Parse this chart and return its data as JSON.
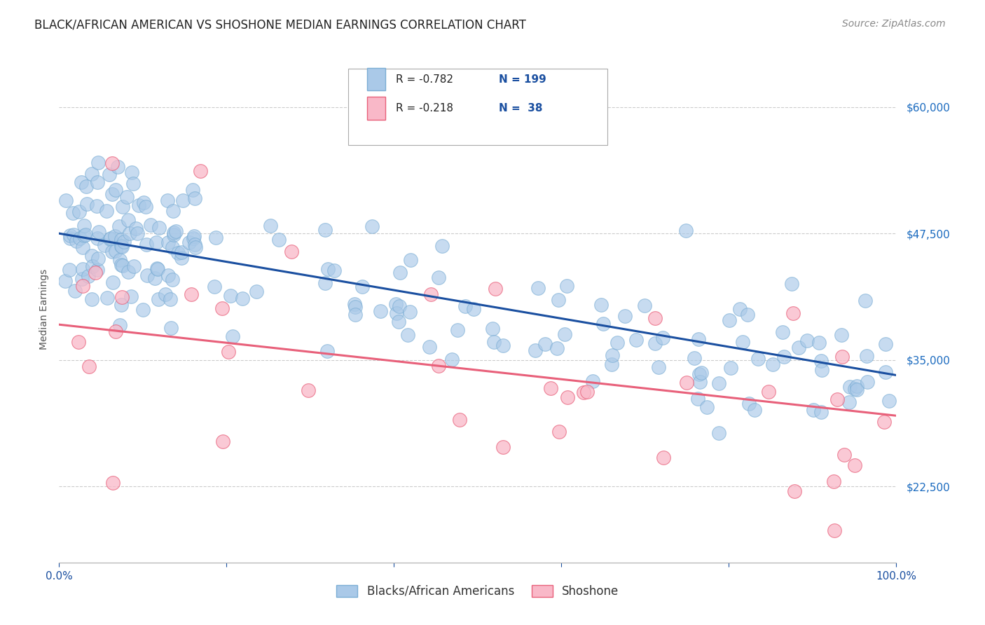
{
  "title": "BLACK/AFRICAN AMERICAN VS SHOSHONE MEDIAN EARNINGS CORRELATION CHART",
  "source": "Source: ZipAtlas.com",
  "ylabel": "Median Earnings",
  "yticks": [
    22500,
    35000,
    47500,
    60000
  ],
  "ytick_labels": [
    "$22,500",
    "$35,000",
    "$47,500",
    "$60,000"
  ],
  "ymin": 15000,
  "ymax": 65000,
  "xmin": 0.0,
  "xmax": 1.0,
  "blue_R": "-0.782",
  "blue_N": "199",
  "pink_R": "-0.218",
  "pink_N": "38",
  "blue_color": "#aac9e8",
  "blue_edge_color": "#7aadd4",
  "blue_line_color": "#1a4fa0",
  "pink_color": "#f9b8c8",
  "pink_edge_color": "#e8607a",
  "pink_line_color": "#e8607a",
  "blue_line_y0": 47500,
  "blue_line_y1": 33500,
  "pink_line_y0": 38500,
  "pink_line_y1": 29500,
  "legend_blue_label": "Blacks/African Americans",
  "legend_pink_label": "Shoshone",
  "title_color": "#222222",
  "axis_label_color": "#1a4fa0",
  "ytick_color": "#1a6abf",
  "title_fontsize": 12,
  "source_fontsize": 10,
  "ylabel_fontsize": 10,
  "tick_fontsize": 11,
  "legend_fontsize": 12,
  "inner_legend_fontsize": 11
}
